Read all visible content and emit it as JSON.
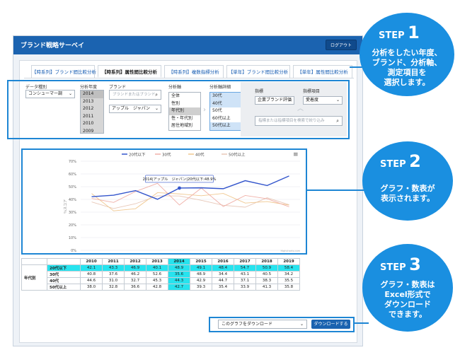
{
  "app": {
    "title": "ブランド戦略サーベイ",
    "logout_label": "ログアウト"
  },
  "tabs": [
    "【時系列】ブランド間比較分析",
    "【時系列】属性間比較分析",
    "【時系列】複数指標分析",
    "【単年】ブランド間比較分析",
    "【単年】属性間比較分析"
  ],
  "filters": {
    "data_type_label": "データ種別",
    "data_type_value": "コンシューマー調",
    "year_label": "分析年度",
    "years": [
      "2014",
      "2013",
      "2012",
      "2011",
      "2010",
      "2009"
    ],
    "brand_label": "ブランド",
    "brand_search_placeholder": "ブランドまたはブランド",
    "brand_value": "アップル　ジャパン",
    "axis_label": "分析軸",
    "axes": [
      "全体",
      "性別",
      "年代別",
      "性・年代別",
      "居住地域別"
    ],
    "axis_detail_label": "分析軸詳細",
    "axis_details": [
      "30代",
      "40代",
      "50代",
      "60代以上",
      "50代以上"
    ],
    "indicator_label": "指標",
    "indicator_value": "企業ブランド評価",
    "indicator_item_label": "指標項目",
    "indicator_item_value": "愛着度",
    "indicator_search_placeholder": "指標または指標項目を検索で絞り込み"
  },
  "chart_data": {
    "type": "line",
    "categories": [
      "2010",
      "2011",
      "2012",
      "2013",
      "2014",
      "2015",
      "2016",
      "2017",
      "2018",
      "2019"
    ],
    "series": [
      {
        "name": "20代以下",
        "values": [
          42.1,
          43.3,
          46.9,
          40.1,
          48.9,
          49.1,
          48.4,
          54.7,
          50.9,
          58.4
        ]
      },
      {
        "name": "30代",
        "values": [
          40.8,
          37.6,
          46.2,
          52.6,
          35.6,
          48.9,
          34.4,
          43.1,
          40.5,
          34.2
        ]
      },
      {
        "name": "40代",
        "values": [
          44.6,
          31.0,
          32.7,
          45.3,
          44.3,
          42.9,
          44.7,
          37.1,
          38.3,
          35.5
        ]
      },
      {
        "name": "50代以上",
        "values": [
          38.0,
          32.8,
          36.6,
          42.8,
          42.7,
          39.3,
          35.4,
          33.9,
          41.3,
          35.8
        ]
      }
    ],
    "colors": [
      "#3355cc",
      "#f0b0a8",
      "#f0c890",
      "#e8c8b8"
    ],
    "ylabel": "％スコア",
    "ylim": [
      0,
      70
    ],
    "yticks": [
      "0%",
      "10%",
      "20%",
      "30%",
      "40%",
      "50%",
      "60%",
      "70%"
    ],
    "grid": true,
    "legend": "top-center",
    "tooltip": "2014|アップル　ジャパン|20代以下:48.9%",
    "credit": "Highcharts.com"
  },
  "table": {
    "group_label": "年代別",
    "highlight_year": "2014"
  },
  "download": {
    "select_value": "このグラフをダウンロード",
    "button_label": "ダウンロードする"
  },
  "steps": [
    {
      "head": "STEP",
      "num": "1",
      "lines": [
        "分析をしたい年度、",
        "ブランド、分析軸、",
        "測定項目を",
        "選択します。"
      ]
    },
    {
      "head": "STEP",
      "num": "2",
      "lines": [
        "グラフ・数表が",
        "表示されます。"
      ]
    },
    {
      "head": "STEP",
      "num": "3",
      "lines": [
        "グラフ・数表は",
        "Excel形式で",
        "ダウンロード",
        "できます。"
      ]
    }
  ],
  "colors": {
    "brand_blue": "#1b63b0",
    "callout_blue": "#1a8fe0",
    "highlight_cyan": "#27e3ee"
  }
}
